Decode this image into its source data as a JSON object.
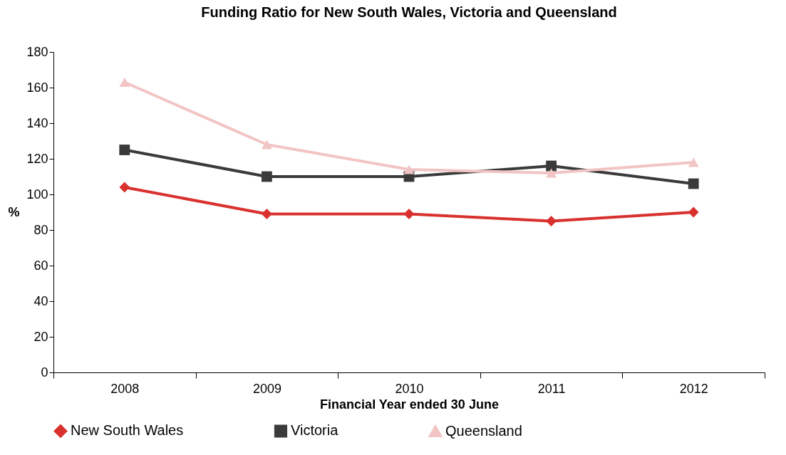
{
  "chart_data": {
    "type": "line",
    "title": "Funding Ratio for New South Wales, Victoria and Queensland",
    "xlabel": "Financial Year ended 30 June",
    "ylabel": "%",
    "categories": [
      "2008",
      "2009",
      "2010",
      "2011",
      "2012"
    ],
    "series": [
      {
        "name": "New South Wales",
        "color": "#d9312e",
        "marker": "diamond",
        "values": [
          104,
          89,
          89,
          85,
          90
        ]
      },
      {
        "name": "Victoria",
        "color": "#3a3a3a",
        "marker": "square",
        "values": [
          125,
          110,
          110,
          116,
          106
        ]
      },
      {
        "name": "Queensland",
        "color": "#f2c4c4",
        "marker": "triangle",
        "values": [
          163,
          128,
          114,
          112,
          118
        ]
      }
    ],
    "ylim": [
      0,
      180
    ],
    "yticks": [
      0,
      20,
      40,
      60,
      80,
      100,
      120,
      140,
      160,
      180
    ],
    "grid": false,
    "legend": "bottom",
    "line_style": "solid"
  }
}
